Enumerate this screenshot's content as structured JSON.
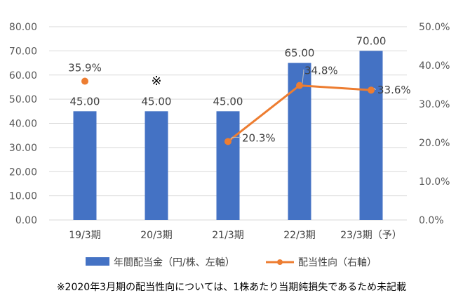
{
  "chart_data": {
    "type": "bar+line",
    "categories": [
      "19/3期",
      "20/3期",
      "21/3期",
      "22/3期",
      "23/3期（予）"
    ],
    "series": [
      {
        "name": "年間配当金（円/株、左軸）",
        "type": "bar",
        "axis": "left",
        "values": [
          45.0,
          45.0,
          45.0,
          65.0,
          70.0
        ],
        "labels": [
          "45.00",
          "45.00",
          "45.00",
          "65.00",
          "70.00"
        ],
        "color": "#4472C4"
      },
      {
        "name": "配当性向（右軸）",
        "type": "line",
        "axis": "right",
        "values": [
          35.9,
          null,
          20.3,
          34.8,
          33.6
        ],
        "labels": [
          "35.9%",
          "",
          "20.3%",
          "34.8%",
          "33.6%"
        ],
        "color": "#ED7D31"
      }
    ],
    "y_left": {
      "min": 0,
      "max": 80,
      "ticks": [
        "0.00",
        "10.00",
        "20.00",
        "30.00",
        "40.00",
        "50.00",
        "60.00",
        "70.00",
        "80.00"
      ]
    },
    "y_right": {
      "min": 0,
      "max": 50,
      "ticks": [
        "0.0%",
        "10.0%",
        "20.0%",
        "30.0%",
        "40.0%",
        "50.0%"
      ]
    },
    "annotations": [
      {
        "category": "20/3期",
        "text": "※"
      }
    ],
    "grid": true,
    "legend_position": "bottom",
    "footnote": "※2020年3月期の配当性向については、1株あたり当期純損失であるため未記載"
  }
}
